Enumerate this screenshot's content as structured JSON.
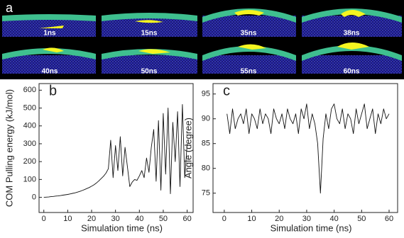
{
  "panel_a": {
    "label": "a",
    "snapshots": [
      "1ns",
      "15ns",
      "35ns",
      "38ns",
      "40ns",
      "50ns",
      "55ns",
      "60ns"
    ]
  },
  "chart_data": [
    {
      "type": "line",
      "label": "b",
      "x_label": "Simulation time (ns)",
      "y_label": "COM Pulling energy (kJ/mol)",
      "color": "#111111",
      "x": [
        0,
        1,
        2,
        3,
        4,
        5,
        6,
        7,
        8,
        9,
        10,
        11,
        12,
        13,
        14,
        15,
        16,
        17,
        18,
        19,
        20,
        21,
        22,
        23,
        24,
        25,
        26,
        27,
        28,
        29,
        30,
        31,
        32,
        33,
        34,
        35,
        36,
        37,
        38,
        39,
        40,
        41,
        42,
        43,
        44,
        45,
        46,
        47,
        48,
        49,
        50,
        51,
        52,
        53,
        54,
        55,
        56,
        57,
        58,
        59,
        60
      ],
      "values": [
        0,
        1,
        2,
        4,
        5,
        7,
        8,
        10,
        12,
        14,
        16,
        19,
        22,
        25,
        29,
        33,
        38,
        43,
        49,
        55,
        62,
        70,
        80,
        92,
        105,
        118,
        135,
        160,
        320,
        110,
        290,
        150,
        340,
        120,
        280,
        170,
        60,
        85,
        100,
        95,
        120,
        150,
        110,
        220,
        140,
        280,
        380,
        90,
        430,
        40,
        470,
        130,
        500,
        20,
        420,
        200,
        480,
        60,
        520,
        110,
        300
      ],
      "xlim": [
        -2,
        62.5
      ],
      "xticks": [
        0,
        10,
        20,
        30,
        40,
        50,
        60
      ],
      "ylim": [
        -85,
        637
      ],
      "yticks": [
        0,
        100,
        200,
        300,
        400,
        500,
        600
      ]
    },
    {
      "type": "line",
      "label": "c",
      "x_label": "Simulation time (ns)",
      "y_label": "Angle (degree)",
      "color": "#111111",
      "x": [
        1,
        2,
        3,
        4,
        5,
        6,
        7,
        8,
        9,
        10,
        11,
        12,
        13,
        14,
        15,
        16,
        17,
        18,
        19,
        20,
        21,
        22,
        23,
        24,
        25,
        26,
        27,
        28,
        29,
        30,
        31,
        32,
        33,
        34,
        35,
        36,
        37,
        38,
        39,
        40,
        41,
        42,
        43,
        44,
        45,
        46,
        47,
        48,
        49,
        50,
        51,
        52,
        53,
        54,
        55,
        56,
        57,
        58,
        59,
        60
      ],
      "values": [
        91,
        87,
        92,
        88,
        90,
        91,
        89,
        92,
        87,
        91,
        90,
        88,
        92,
        89,
        91,
        90,
        87,
        92,
        90,
        89,
        91,
        88,
        92,
        90,
        89,
        91,
        87,
        92,
        90,
        93,
        88,
        91,
        89,
        85,
        75,
        86,
        91,
        88,
        92,
        93,
        90,
        89,
        92,
        88,
        91,
        90,
        87,
        92,
        89,
        91,
        93,
        88,
        90,
        92,
        87,
        91,
        89,
        92,
        90,
        91
      ],
      "xlim": [
        -4.1,
        63.1
      ],
      "xticks": [
        0,
        10,
        20,
        30,
        40,
        50,
        60
      ],
      "ylim": [
        71.1,
        97.1
      ],
      "yticks": [
        75,
        80,
        85,
        90,
        95
      ]
    }
  ]
}
